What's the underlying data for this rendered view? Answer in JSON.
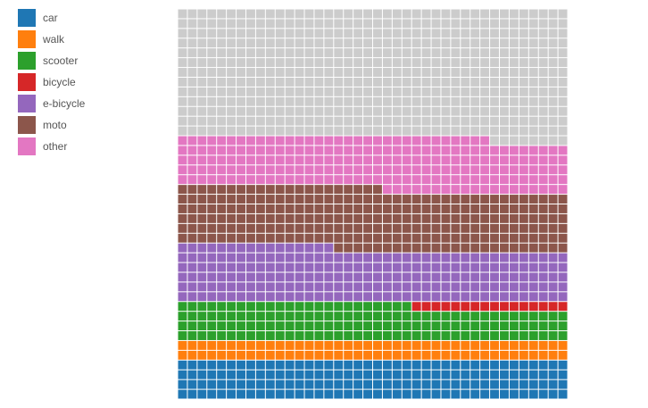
{
  "chart_data": {
    "type": "waffle",
    "grid": {
      "columns": 40,
      "rows": 40
    },
    "empty_color": "#cccccc",
    "legend_placement": "top-left",
    "series": [
      {
        "name": "car",
        "color": "#1f77b4",
        "count": 160
      },
      {
        "name": "walk",
        "color": "#ff7f0e",
        "count": 80
      },
      {
        "name": "scooter",
        "color": "#2ca02c",
        "count": 144
      },
      {
        "name": "bicycle",
        "color": "#d62728",
        "count": 16
      },
      {
        "name": "e-bicycle",
        "color": "#9467bd",
        "count": 216
      },
      {
        "name": "moto",
        "color": "#8c564b",
        "count": 245
      },
      {
        "name": "other",
        "color": "#e377c2",
        "count": 211
      }
    ],
    "empty_count": 528
  }
}
